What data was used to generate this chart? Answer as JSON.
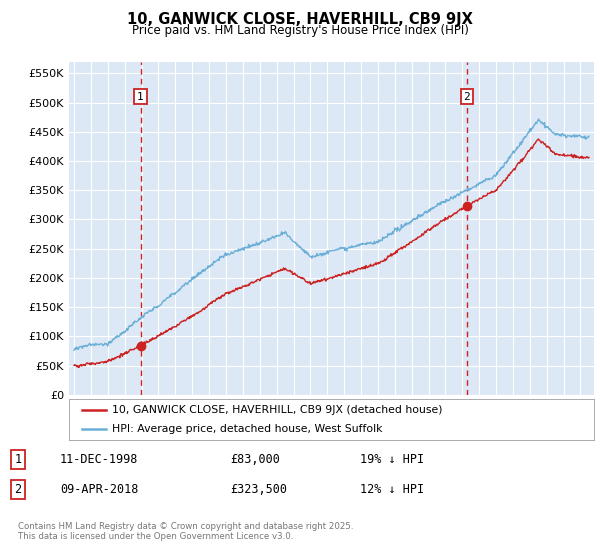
{
  "title": "10, GANWICK CLOSE, HAVERHILL, CB9 9JX",
  "subtitle": "Price paid vs. HM Land Registry's House Price Index (HPI)",
  "legend_line1": "10, GANWICK CLOSE, HAVERHILL, CB9 9JX (detached house)",
  "legend_line2": "HPI: Average price, detached house, West Suffolk",
  "footnote": "Contains HM Land Registry data © Crown copyright and database right 2025.\nThis data is licensed under the Open Government Licence v3.0.",
  "sale1_date": "11-DEC-1998",
  "sale1_price": "£83,000",
  "sale1_hpi": "19% ↓ HPI",
  "sale2_date": "09-APR-2018",
  "sale2_price": "£323,500",
  "sale2_hpi": "12% ↓ HPI",
  "ytick_labels": [
    "£0",
    "£50K",
    "£100K",
    "£150K",
    "£200K",
    "£250K",
    "£300K",
    "£350K",
    "£400K",
    "£450K",
    "£500K",
    "£550K"
  ],
  "yticks": [
    0,
    50000,
    100000,
    150000,
    200000,
    250000,
    300000,
    350000,
    400000,
    450000,
    500000,
    550000
  ],
  "hpi_color": "#6baed6",
  "price_color": "#cc2222",
  "vline_color": "#cc2222",
  "bg_color": "#dce8f5",
  "sale1_x": 1998.94,
  "sale1_y": 83000,
  "sale2_x": 2018.27,
  "sale2_y": 323500,
  "xlim_left": 1994.7,
  "xlim_right": 2025.8,
  "ylim": [
    0,
    570000
  ]
}
